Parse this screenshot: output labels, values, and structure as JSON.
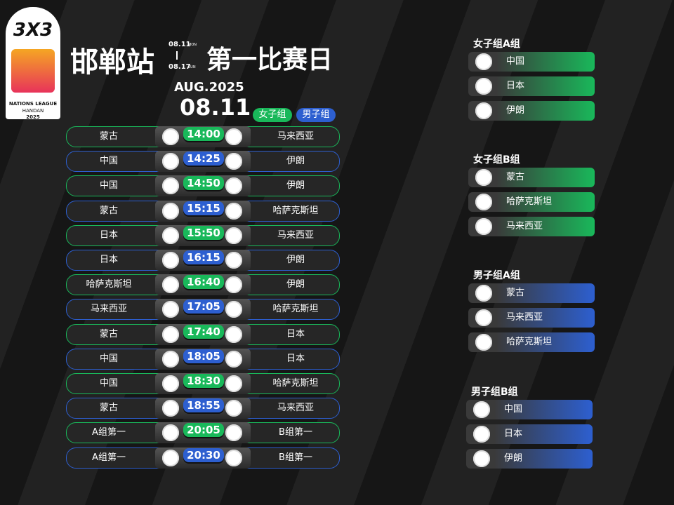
{
  "logo": {
    "mark": "3X3",
    "league": "NATIONS LEAGUE",
    "city": "HANDAN",
    "year": "2025"
  },
  "header": {
    "station": "邯郸站",
    "start_date": "08.11",
    "start_day": "MON",
    "end_date": "08.17",
    "end_day": "SUN",
    "title": "第一比赛日",
    "month": "AUG.2025",
    "date": "08.11"
  },
  "legend": [
    {
      "label": "女子组",
      "color": "#19b85a"
    },
    {
      "label": "男子组",
      "color": "#2d5fd0"
    }
  ],
  "matches": [
    {
      "home": "蒙古",
      "time": "14:00",
      "away": "马来西亚",
      "color": "#19b85a"
    },
    {
      "home": "中国",
      "time": "14:25",
      "away": "伊朗",
      "color": "#2d5fd0"
    },
    {
      "home": "中国",
      "time": "14:50",
      "away": "伊朗",
      "color": "#19b85a"
    },
    {
      "home": "蒙古",
      "time": "15:15",
      "away": "哈萨克斯坦",
      "color": "#2d5fd0"
    },
    {
      "home": "日本",
      "time": "15:50",
      "away": "马来西亚",
      "color": "#19b85a"
    },
    {
      "home": "日本",
      "time": "16:15",
      "away": "伊朗",
      "color": "#2d5fd0"
    },
    {
      "home": "哈萨克斯坦",
      "time": "16:40",
      "away": "伊朗",
      "color": "#19b85a"
    },
    {
      "home": "马来西亚",
      "time": "17:05",
      "away": "哈萨克斯坦",
      "color": "#2d5fd0"
    },
    {
      "home": "蒙古",
      "time": "17:40",
      "away": "日本",
      "color": "#19b85a"
    },
    {
      "home": "中国",
      "time": "18:05",
      "away": "日本",
      "color": "#2d5fd0"
    },
    {
      "home": "中国",
      "time": "18:30",
      "away": "哈萨克斯坦",
      "color": "#19b85a"
    },
    {
      "home": "蒙古",
      "time": "18:55",
      "away": "马来西亚",
      "color": "#2d5fd0"
    },
    {
      "home": "A组第一",
      "time": "20:05",
      "away": "B组第一",
      "color": "#19b85a"
    },
    {
      "home": "A组第一",
      "time": "20:30",
      "away": "B组第一",
      "color": "#2d5fd0"
    }
  ],
  "groups": [
    {
      "title": "女子组A组",
      "color": "#19b85a",
      "teams": [
        "中国",
        "日本",
        "伊朗"
      ]
    },
    {
      "title": "女子组B组",
      "color": "#19b85a",
      "teams": [
        "蒙古",
        "哈萨克斯坦",
        "马来西亚"
      ]
    },
    {
      "title": "男子组A组",
      "color": "#2d5fd0",
      "teams": [
        "蒙古",
        "马来西亚",
        "哈萨克斯坦"
      ]
    },
    {
      "title": "男子组B组",
      "color": "#2d5fd0",
      "teams": [
        "中国",
        "日本",
        "伊朗"
      ]
    }
  ]
}
